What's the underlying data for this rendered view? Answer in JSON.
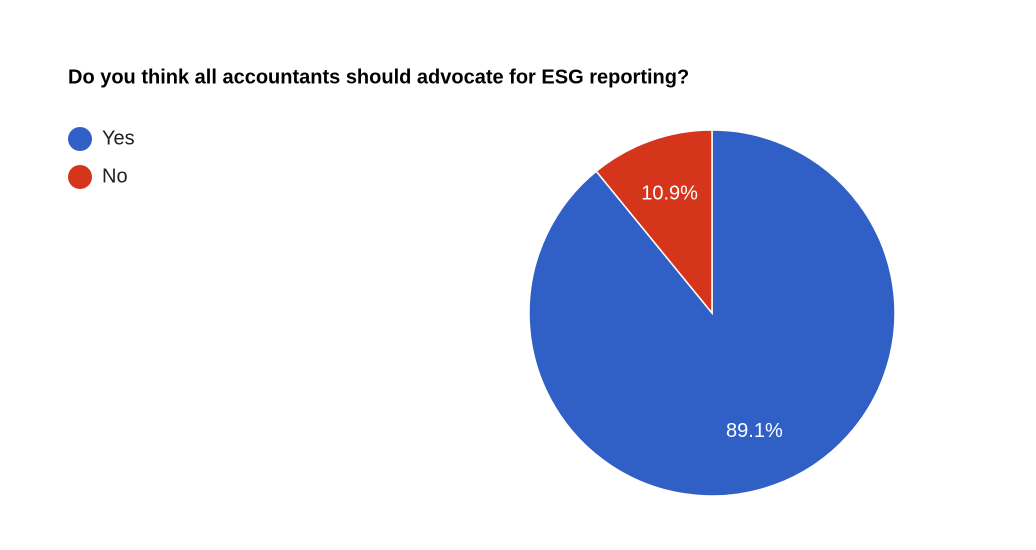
{
  "chart_data": {
    "type": "pie",
    "title": "Do you think all accountants should advocate for ESG reporting?",
    "categories": [
      "Yes",
      "No"
    ],
    "values": [
      89.1,
      10.9
    ],
    "value_labels": [
      "89.1%",
      "10.9%"
    ],
    "colors": [
      "#3060c6",
      "#d5351a"
    ],
    "legend": "top-left"
  }
}
